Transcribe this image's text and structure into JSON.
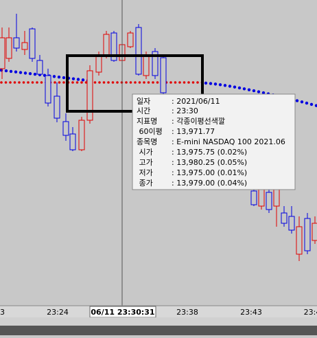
{
  "x_axis": {
    "labels": [
      "3",
      "23:24",
      "06/11 23:30:31",
      "23:38",
      "23:43",
      "23:4"
    ]
  },
  "tooltip": {
    "rows": [
      [
        "일자",
        ": 2021/06/11"
      ],
      [
        "시간",
        ": 23:30"
      ],
      [
        "지표명",
        ": 각종이평선색깔"
      ],
      [
        " 60이평",
        ": 13,971.77"
      ],
      [
        "종목명",
        ": E-mini NASDAQ 100 2021.06"
      ],
      [
        " 시가",
        ": 13,975.75 (0.02%)"
      ],
      [
        " 고가",
        ": 13,980.25 (0.05%)"
      ],
      [
        " 저가",
        ": 13,975.00 (0.01%)"
      ],
      [
        " 종가",
        ": 13,979.00 (0.04%)"
      ]
    ]
  }
}
